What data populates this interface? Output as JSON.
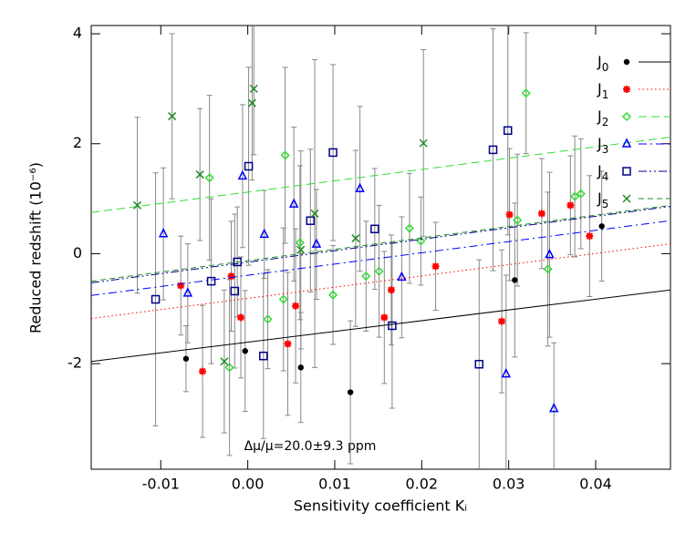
{
  "chart_data": {
    "type": "scatter",
    "xlabel": "Sensitivity coefficient Kᵢ",
    "ylabel": "Reduced redshift (10⁻⁶)",
    "annotation": "Δμ/μ=20.0±9.3 ppm",
    "xlim": [
      -0.018,
      0.0486
    ],
    "ylim": [
      -3.92,
      4.15
    ],
    "xticks": [
      -0.01,
      {
        "value": 0,
        "label": "0.00"
      },
      0.01,
      0.02,
      0.03,
      0.04
    ],
    "yticks": [
      -2,
      0,
      2,
      4
    ],
    "legend": "upper right",
    "series": [
      {
        "name": "J0",
        "color": "#000000",
        "marker": "circle",
        "dash": "solid",
        "x": [
          -0.0071,
          -0.0003,
          0.0061,
          0.0118,
          0.0307,
          0.0407
        ],
        "values": [
          -1.91,
          -1.77,
          -2.07,
          -2.52,
          -0.48,
          0.5
        ],
        "errors": [
          0.6,
          1.1,
          1.0,
          1.3,
          1.4,
          1.0
        ],
        "fit_x": [
          -0.018,
          0.0486
        ],
        "fit_y": [
          -1.96,
          -0.66
        ]
      },
      {
        "name": "J1",
        "color": "#ff0000",
        "marker": "asterisk",
        "dash": "dotted",
        "x": [
          -0.0077,
          -0.0052,
          -0.0019,
          -0.0008,
          0.0046,
          0.0055,
          0.0157,
          0.0165,
          0.0216,
          0.0292,
          0.0301,
          0.0338,
          0.0371,
          0.0393
        ],
        "values": [
          -0.58,
          -2.14,
          -0.41,
          -1.16,
          -1.64,
          -0.95,
          -1.16,
          -0.66,
          -0.23,
          -1.23,
          0.71,
          0.73,
          0.88,
          0.32
        ],
        "errors": [
          0.9,
          1.2,
          1.0,
          1.1,
          1.3,
          1.4,
          1.2,
          1.0,
          0.8,
          1.3,
          1.2,
          1.0,
          0.9,
          1.1
        ],
        "fit_x": [
          -0.018,
          0.0486
        ],
        "fit_y": [
          -1.18,
          0.18
        ]
      },
      {
        "name": "J2",
        "color": "#33dd33",
        "marker": "diamond",
        "dash": "dashed",
        "x": [
          -0.0044,
          -0.0021,
          0.0023,
          0.0041,
          0.0043,
          0.006,
          0.0098,
          0.0136,
          0.0151,
          0.0186,
          0.0199,
          0.031,
          0.032,
          0.0345,
          0.0376,
          0.0383
        ],
        "values": [
          1.38,
          -2.07,
          -1.19,
          -0.83,
          1.79,
          0.2,
          -0.75,
          -0.41,
          -0.32,
          0.46,
          0.23,
          0.61,
          2.92,
          -0.28,
          1.04,
          1.09
        ],
        "errors": [
          1.5,
          1.6,
          0.9,
          1.3,
          1.6,
          1.4,
          0.9,
          1.0,
          1.2,
          1.0,
          0.8,
          1.2,
          1.1,
          1.4,
          1.1,
          1.0
        ],
        "fit_x": [
          -0.018,
          0.0486
        ],
        "fit_y": [
          0.75,
          2.12
        ]
      },
      {
        "name": "J3",
        "color": "#0000ff",
        "marker": "triangle",
        "dash": "longdash",
        "x": [
          -0.0097,
          -0.0069,
          -0.0006,
          0.0019,
          0.0053,
          0.0079,
          0.0129,
          0.0177,
          0.0297,
          0.0347,
          0.0352
        ],
        "values": [
          0.36,
          -0.72,
          1.41,
          0.35,
          0.9,
          0.17,
          1.18,
          -0.43,
          -2.19,
          -0.02,
          -2.82
        ],
        "errors": [
          1.2,
          0.9,
          1.3,
          0.8,
          1.4,
          1.0,
          1.5,
          1.1,
          1.8,
          1.5,
          1.2
        ],
        "fit_x": [
          -0.018,
          0.0486
        ],
        "fit_y": [
          -0.76,
          0.6
        ]
      },
      {
        "name": "J4",
        "color": "#00008b",
        "marker": "square",
        "dash": "dashdot",
        "x": [
          -0.0106,
          -0.0042,
          -0.0015,
          -0.0012,
          0.0001,
          0.0018,
          0.0072,
          0.0098,
          0.0146,
          0.0166,
          0.0266,
          0.0282,
          0.0299
        ],
        "values": [
          -0.83,
          -0.5,
          -0.68,
          -0.15,
          1.59,
          -1.86,
          0.6,
          1.84,
          0.45,
          -1.31,
          -2.01,
          1.89,
          2.24
        ],
        "errors": [
          2.3,
          1.5,
          1.4,
          1.0,
          1.8,
          1.5,
          1.3,
          1.6,
          1.1,
          1.5,
          1.9,
          2.2,
          1.9
        ],
        "fit_x": [
          -0.018,
          0.0486
        ],
        "fit_y": [
          -0.53,
          0.86
        ]
      },
      {
        "name": "J5",
        "color": "#228b22",
        "marker": "cross",
        "dash": "shortdash",
        "x": [
          -0.0127,
          -0.0087,
          -0.0055,
          -0.0027,
          0.0005,
          0.0007,
          0.0061,
          0.0077,
          0.0124,
          0.0202
        ],
        "values": [
          0.88,
          2.5,
          1.44,
          -1.96,
          2.74,
          3.0,
          0.07,
          0.73,
          0.28,
          2.01
        ],
        "errors": [
          1.6,
          1.5,
          1.2,
          1.3,
          1.4,
          1.2,
          1.8,
          2.8,
          1.6,
          1.7
        ],
        "fit_x": [
          -0.018,
          0.0486
        ],
        "fit_y": [
          -0.5,
          0.88
        ]
      }
    ]
  }
}
